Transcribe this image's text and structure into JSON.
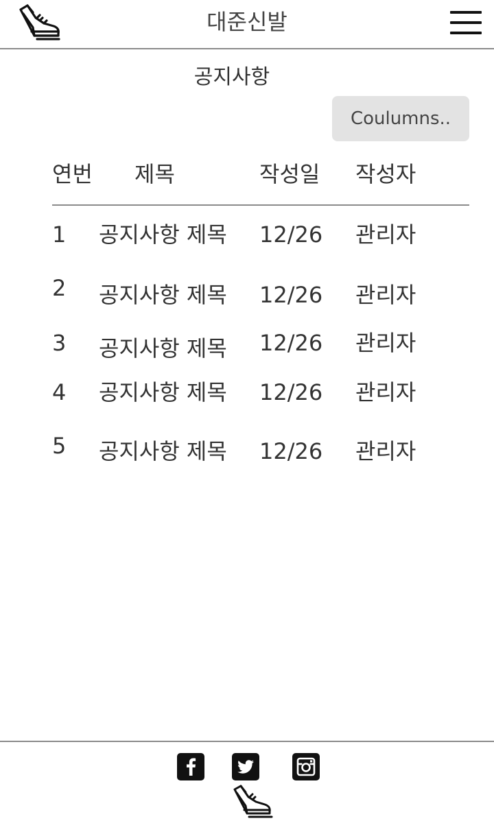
{
  "header": {
    "site_title": "대준신발",
    "logo_icon": "shoe-icon",
    "menu_icon": "hamburger-menu-icon"
  },
  "main": {
    "page_title": "공지사항",
    "columns_button": "Coulumns..",
    "table": {
      "headers": [
        "연번",
        "제목",
        "작성일",
        "작성자"
      ],
      "rows": [
        {
          "no": "1",
          "title": "공지사항 제목",
          "date": "12/26",
          "author": "관리자"
        },
        {
          "no": "2",
          "title": "공지사항 제목",
          "date": "12/26",
          "author": "관리자"
        },
        {
          "no": "3",
          "title": "공지사항 제목",
          "date": "12/26",
          "author": "관리자"
        },
        {
          "no": "4",
          "title": "공지사항 제목",
          "date": "12/26",
          "author": "관리자"
        },
        {
          "no": "5",
          "title": "공지사항 제목",
          "date": "12/26",
          "author": "관리자"
        }
      ]
    }
  },
  "footer": {
    "social": [
      "facebook-icon",
      "twitter-icon",
      "instagram-icon"
    ],
    "logo_icon": "shoe-icon"
  },
  "colors": {
    "text": "#333333",
    "divider": "#8a8a8a",
    "button_bg": "#e3e3e3",
    "icon": "#111111"
  }
}
